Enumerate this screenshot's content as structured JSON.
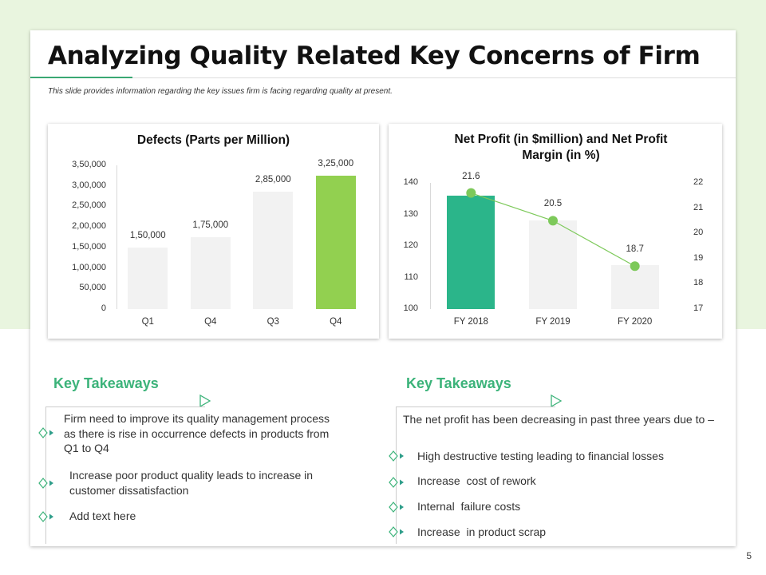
{
  "slide": {
    "title": "Analyzing Quality Related Key Concerns of Firm",
    "subtitle": "This slide provides information regarding the key issues firm is facing regarding quality at present.",
    "page_number": "5"
  },
  "colors": {
    "accent_green": "#3cb37a",
    "bar_green": "#92d050",
    "bar_teal": "#2bb58a",
    "bar_gray": "#f2f2f2"
  },
  "chart_data": [
    {
      "type": "bar",
      "title": "Defects (Parts per Million)",
      "categories": [
        "Q1",
        "Q4",
        "Q3",
        "Q4"
      ],
      "values": [
        150000,
        175000,
        285000,
        325000
      ],
      "value_labels": [
        "1,50,000",
        "1,75,000",
        "2,85,000",
        "3,25,000"
      ],
      "highlight_index": 3,
      "ylim": [
        0,
        350000
      ],
      "yticks": [
        "0",
        "50,000",
        "1,00,000",
        "1,50,000",
        "2,00,000",
        "2,50,000",
        "3,00,000",
        "3,50,000"
      ],
      "xlabel": "",
      "ylabel": ""
    },
    {
      "type": "bar+line",
      "title": "Net Profit (in $million) and Net Profit Margin (in %)",
      "categories": [
        "FY 2018",
        "FY 2019",
        "FY 2020"
      ],
      "series": [
        {
          "name": "Net Profit",
          "axis": "left",
          "values": [
            136,
            128,
            114
          ]
        },
        {
          "name": "Net Profit Margin",
          "axis": "right",
          "values": [
            21.6,
            20.5,
            18.7
          ],
          "labels": [
            "21.6",
            "20.5",
            "18.7"
          ]
        }
      ],
      "highlight_index": 0,
      "ylim_left": [
        100,
        140
      ],
      "yticks_left": [
        "100",
        "110",
        "120",
        "130",
        "140"
      ],
      "ylim_right": [
        17,
        22
      ],
      "yticks_right": [
        "17",
        "18",
        "19",
        "20",
        "21",
        "22"
      ]
    }
  ],
  "takeaways_left": {
    "heading": "Key Takeaways",
    "items": [
      "Firm need to improve its quality management process as there is rise in occurrence defects in products from Q1 to Q4",
      "Increase poor product quality leads to increase in customer dissatisfaction",
      "Add text here"
    ]
  },
  "takeaways_right": {
    "heading": "Key Takeaways",
    "intro": "The net profit has been decreasing in past three years due to –",
    "items": [
      "High destructive testing leading to financial losses",
      "Increase  cost of rework",
      "Internal  failure costs",
      "Increase  in product scrap"
    ]
  }
}
